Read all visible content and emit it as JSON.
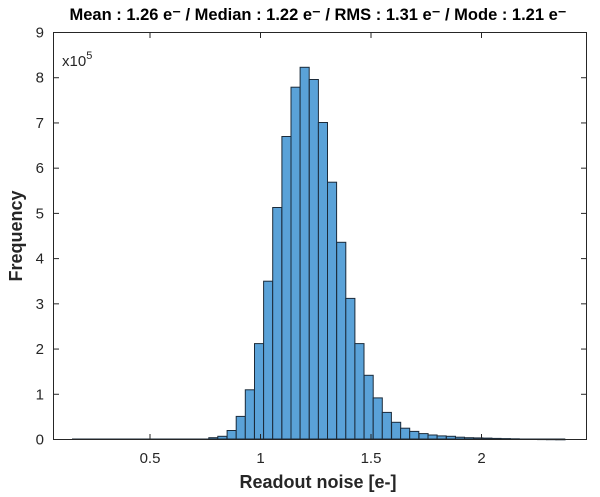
{
  "chart_data": {
    "type": "bar",
    "subtype": "histogram",
    "title": "Mean : 1.26 e⁻ / Median : 1.22 e⁻ / RMS : 1.31 e⁻ / Mode : 1.21 e⁻",
    "title_parts": {
      "mean": "1.26",
      "median": "1.22",
      "rms": "1.31",
      "mode": "1.21",
      "unit": "e⁻"
    },
    "xlabel": "Readout noise [e-]",
    "ylabel": "Frequency",
    "y_multiplier": "x10",
    "y_multiplier_exp": "5",
    "xlim": [
      0.0,
      2.45
    ],
    "ylim": [
      0,
      9
    ],
    "xticks": [
      0.5,
      1,
      1.5,
      2
    ],
    "xtick_labels": [
      "0.5",
      "1",
      "1.5",
      "2"
    ],
    "yticks": [
      0,
      1,
      2,
      3,
      4,
      5,
      6,
      7,
      8,
      9
    ],
    "ytick_labels": [
      "0",
      "1",
      "2",
      "3",
      "4",
      "5",
      "6",
      "7",
      "8",
      "9"
    ],
    "grid": false,
    "legend": null,
    "bar_color": "#5aa2d8",
    "edge_color": "#1b2b3a",
    "bin_width": 0.0413,
    "baseline_span": [
      0.147,
      0.725
    ],
    "bins": [
      {
        "x0": 0.725,
        "y": 0.01
      },
      {
        "x0": 0.766,
        "y": 0.04
      },
      {
        "x0": 0.807,
        "y": 0.07
      },
      {
        "x0": 0.849,
        "y": 0.2
      },
      {
        "x0": 0.89,
        "y": 0.51
      },
      {
        "x0": 0.931,
        "y": 1.1
      },
      {
        "x0": 0.973,
        "y": 2.12
      },
      {
        "x0": 1.014,
        "y": 3.5
      },
      {
        "x0": 1.055,
        "y": 5.13
      },
      {
        "x0": 1.097,
        "y": 6.7
      },
      {
        "x0": 1.138,
        "y": 7.79
      },
      {
        "x0": 1.179,
        "y": 8.23
      },
      {
        "x0": 1.221,
        "y": 7.96
      },
      {
        "x0": 1.262,
        "y": 7.01
      },
      {
        "x0": 1.303,
        "y": 5.69
      },
      {
        "x0": 1.345,
        "y": 4.36
      },
      {
        "x0": 1.386,
        "y": 3.12
      },
      {
        "x0": 1.427,
        "y": 2.12
      },
      {
        "x0": 1.469,
        "y": 1.42
      },
      {
        "x0": 1.51,
        "y": 0.92
      },
      {
        "x0": 1.551,
        "y": 0.6
      },
      {
        "x0": 1.593,
        "y": 0.38
      },
      {
        "x0": 1.634,
        "y": 0.25
      },
      {
        "x0": 1.675,
        "y": 0.18
      },
      {
        "x0": 1.717,
        "y": 0.13
      },
      {
        "x0": 1.758,
        "y": 0.1
      },
      {
        "x0": 1.799,
        "y": 0.08
      },
      {
        "x0": 1.841,
        "y": 0.07
      },
      {
        "x0": 1.882,
        "y": 0.05
      },
      {
        "x0": 1.923,
        "y": 0.04
      },
      {
        "x0": 1.965,
        "y": 0.035
      },
      {
        "x0": 2.006,
        "y": 0.03
      },
      {
        "x0": 2.047,
        "y": 0.025
      },
      {
        "x0": 2.089,
        "y": 0.02
      },
      {
        "x0": 2.13,
        "y": 0.015
      },
      {
        "x0": 2.171,
        "y": 0.012
      },
      {
        "x0": 2.213,
        "y": 0.01
      },
      {
        "x0": 2.254,
        "y": 0.008
      },
      {
        "x0": 2.295,
        "y": 0.006
      },
      {
        "x0": 2.337,
        "y": 0.005
      }
    ]
  }
}
